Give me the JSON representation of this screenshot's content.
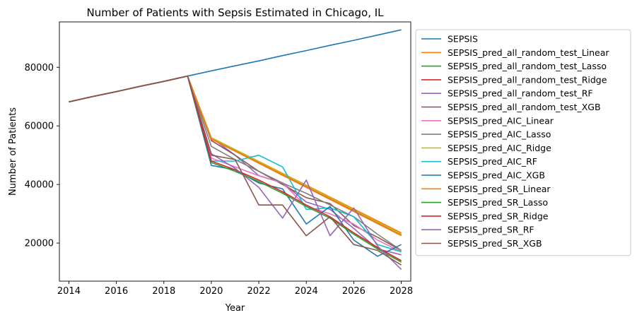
{
  "chart_data": {
    "type": "line",
    "title": "Number of Patients with Sepsis Estimated in Chicago, IL",
    "xlabel": "Year",
    "ylabel": "Number of Patients",
    "xlim": [
      2013.6,
      2028.4
    ],
    "ylim": [
      7000,
      95500
    ],
    "xticks": [
      2014,
      2016,
      2018,
      2020,
      2022,
      2024,
      2026,
      2028
    ],
    "yticks": [
      20000,
      40000,
      60000,
      80000
    ],
    "ytick_labels": [
      "20000",
      "40000",
      "60000",
      "80000"
    ],
    "grid": false,
    "legend_position": "outside-right",
    "series": [
      {
        "name": "SEPSIS",
        "color": "#1f77b4",
        "x": [
          2014,
          2015,
          2016,
          2017,
          2018,
          2019,
          2020,
          2021,
          2022,
          2023,
          2024,
          2025,
          2026,
          2027,
          2028
        ],
        "y": [
          68200,
          70000,
          71700,
          73500,
          75200,
          77000,
          78800,
          80500,
          82200,
          84000,
          85700,
          87500,
          89200,
          91000,
          92800
        ]
      },
      {
        "name": "SEPSIS_pred_all_random_test_Linear",
        "color": "#ff7f0e",
        "x": [
          2014,
          2015,
          2016,
          2017,
          2018,
          2019,
          2020,
          2028
        ],
        "y": [
          68200,
          70000,
          71700,
          73500,
          75200,
          77000,
          56000,
          23500
        ]
      },
      {
        "name": "SEPSIS_pred_all_random_test_Lasso",
        "color": "#2ca02c",
        "x": [
          2014,
          2015,
          2016,
          2017,
          2018,
          2019,
          2020,
          2028
        ],
        "y": [
          68200,
          70000,
          71700,
          73500,
          75200,
          77000,
          55800,
          23000
        ]
      },
      {
        "name": "SEPSIS_pred_all_random_test_Ridge",
        "color": "#d62728",
        "x": [
          2014,
          2015,
          2016,
          2017,
          2018,
          2019,
          2020,
          2028
        ],
        "y": [
          68200,
          70000,
          71700,
          73500,
          75200,
          77000,
          55500,
          22800
        ]
      },
      {
        "name": "SEPSIS_pred_all_random_test_RF",
        "color": "#9467bd",
        "x": [
          2014,
          2015,
          2016,
          2017,
          2018,
          2019,
          2020,
          2021,
          2022,
          2023,
          2024,
          2025,
          2026,
          2027,
          2028
        ],
        "y": [
          68200,
          70000,
          71700,
          73500,
          75200,
          77000,
          56000,
          50000,
          43000,
          40500,
          34000,
          31500,
          25000,
          18000,
          16000
        ]
      },
      {
        "name": "SEPSIS_pred_all_random_test_XGB",
        "color": "#8c564b",
        "x": [
          2014,
          2015,
          2016,
          2017,
          2018,
          2019,
          2020,
          2021,
          2022,
          2023,
          2024,
          2025,
          2026,
          2027,
          2028
        ],
        "y": [
          68200,
          70000,
          71700,
          73500,
          75200,
          77000,
          55000,
          50000,
          44500,
          40000,
          35500,
          33500,
          26000,
          22000,
          17500
        ]
      },
      {
        "name": "SEPSIS_pred_AIC_Linear",
        "color": "#e377c2",
        "x": [
          2014,
          2015,
          2016,
          2017,
          2018,
          2019,
          2020,
          2021,
          2022,
          2023,
          2024,
          2025,
          2026,
          2027,
          2028
        ],
        "y": [
          68200,
          70000,
          71700,
          73500,
          75200,
          77000,
          49000,
          46000,
          43000,
          40500,
          32500,
          30000,
          26500,
          21000,
          17000
        ]
      },
      {
        "name": "SEPSIS_pred_AIC_Lasso",
        "color": "#7f7f7f",
        "x": [
          2014,
          2015,
          2016,
          2017,
          2018,
          2019,
          2020,
          2021,
          2022,
          2023,
          2024,
          2025,
          2026,
          2027,
          2028
        ],
        "y": [
          68200,
          70000,
          71700,
          73500,
          75200,
          77000,
          53000,
          48500,
          44500,
          40500,
          37000,
          33000,
          29000,
          23000,
          17500
        ]
      },
      {
        "name": "SEPSIS_pred_AIC_Ridge",
        "color": "#bcbd22",
        "x": [
          2014,
          2015,
          2016,
          2017,
          2018,
          2019,
          2020,
          2028
        ],
        "y": [
          68200,
          70000,
          71700,
          73500,
          75200,
          77000,
          56000,
          23000
        ]
      },
      {
        "name": "SEPSIS_pred_AIC_RF",
        "color": "#17becf",
        "x": [
          2014,
          2015,
          2016,
          2017,
          2018,
          2019,
          2020,
          2021,
          2022,
          2023,
          2024,
          2025,
          2026,
          2027,
          2028
        ],
        "y": [
          68200,
          70000,
          71700,
          73500,
          75200,
          77000,
          48000,
          48000,
          50000,
          46000,
          31500,
          32000,
          29000,
          19500,
          17000
        ]
      },
      {
        "name": "SEPSIS_pred_AIC_XGB",
        "color": "#1f77b4",
        "x": [
          2014,
          2015,
          2016,
          2017,
          2018,
          2019,
          2020,
          2021,
          2022,
          2023,
          2024,
          2025,
          2026,
          2027,
          2028
        ],
        "y": [
          68200,
          70000,
          71700,
          73500,
          75200,
          77000,
          46500,
          45000,
          40500,
          38500,
          26500,
          32500,
          21000,
          15500,
          19500
        ]
      },
      {
        "name": "SEPSIS_pred_SR_Linear",
        "color": "#ff7f0e",
        "x": [
          2014,
          2015,
          2016,
          2017,
          2018,
          2019,
          2020,
          2028
        ],
        "y": [
          68200,
          70000,
          71700,
          73500,
          75200,
          77000,
          55500,
          22500
        ]
      },
      {
        "name": "SEPSIS_pred_SR_Lasso",
        "color": "#2ca02c",
        "x": [
          2014,
          2015,
          2016,
          2017,
          2018,
          2019,
          2020,
          2021,
          2022,
          2023,
          2024,
          2025,
          2026,
          2027,
          2028
        ],
        "y": [
          68200,
          70000,
          71700,
          73500,
          75200,
          77000,
          47500,
          44500,
          41000,
          37000,
          32500,
          28500,
          23000,
          18000,
          13500
        ]
      },
      {
        "name": "SEPSIS_pred_SR_Ridge",
        "color": "#d62728",
        "x": [
          2014,
          2015,
          2016,
          2017,
          2018,
          2019,
          2020,
          2021,
          2022,
          2023,
          2024,
          2025,
          2026,
          2027,
          2028
        ],
        "y": [
          68200,
          70000,
          71700,
          73500,
          75200,
          77000,
          48000,
          45000,
          41500,
          37500,
          33000,
          29000,
          23500,
          18500,
          14000
        ]
      },
      {
        "name": "SEPSIS_pred_SR_RF",
        "color": "#9467bd",
        "x": [
          2014,
          2015,
          2016,
          2017,
          2018,
          2019,
          2020,
          2021,
          2022,
          2023,
          2024,
          2025,
          2026,
          2027,
          2028
        ],
        "y": [
          68200,
          70000,
          71700,
          73500,
          75200,
          77000,
          50500,
          45500,
          39000,
          28500,
          41500,
          22500,
          32000,
          19000,
          11000
        ]
      },
      {
        "name": "SEPSIS_pred_SR_XGB",
        "color": "#8c564b",
        "x": [
          2014,
          2015,
          2016,
          2017,
          2018,
          2019,
          2020,
          2021,
          2022,
          2023,
          2024,
          2025,
          2026,
          2027,
          2028
        ],
        "y": [
          68200,
          70000,
          71700,
          73500,
          75200,
          77000,
          50000,
          48500,
          33000,
          33000,
          22500,
          29000,
          19500,
          17500,
          12500
        ]
      }
    ]
  }
}
